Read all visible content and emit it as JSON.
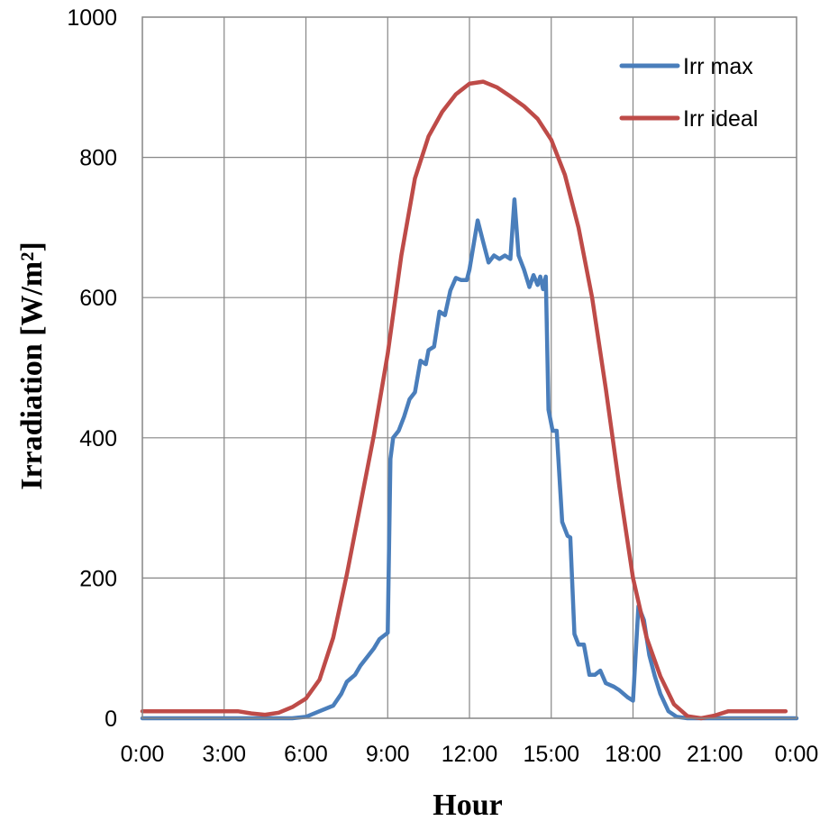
{
  "chart_data": {
    "type": "line",
    "title": "",
    "xlabel": "Hour",
    "ylabel": "Irradiation [W/m²]",
    "xlim": [
      0,
      24
    ],
    "ylim": [
      0,
      1000
    ],
    "grid": true,
    "legend_position": "top-right",
    "x_tick_labels": [
      "0:00",
      "3:00",
      "6:00",
      "9:00",
      "12:00",
      "15:00",
      "18:00",
      "21:00",
      "0:00"
    ],
    "y_tick_labels": [
      "0",
      "200",
      "400",
      "600",
      "800",
      "1000"
    ],
    "series": [
      {
        "name": "Irr max",
        "color": "#4a7ebb",
        "points": [
          [
            0.0,
            0
          ],
          [
            5.5,
            0
          ],
          [
            6.0,
            2
          ],
          [
            6.5,
            10
          ],
          [
            7.0,
            18
          ],
          [
            7.3,
            35
          ],
          [
            7.5,
            52
          ],
          [
            7.8,
            62
          ],
          [
            8.0,
            75
          ],
          [
            8.3,
            90
          ],
          [
            8.5,
            100
          ],
          [
            8.7,
            113
          ],
          [
            9.0,
            122
          ],
          [
            9.1,
            370
          ],
          [
            9.2,
            400
          ],
          [
            9.4,
            410
          ],
          [
            9.6,
            430
          ],
          [
            9.8,
            455
          ],
          [
            10.0,
            465
          ],
          [
            10.2,
            510
          ],
          [
            10.4,
            505
          ],
          [
            10.5,
            525
          ],
          [
            10.7,
            530
          ],
          [
            10.9,
            580
          ],
          [
            11.1,
            575
          ],
          [
            11.3,
            610
          ],
          [
            11.5,
            628
          ],
          [
            11.7,
            625
          ],
          [
            11.9,
            625
          ],
          [
            12.0,
            640
          ],
          [
            12.3,
            710
          ],
          [
            12.5,
            680
          ],
          [
            12.7,
            650
          ],
          [
            12.9,
            660
          ],
          [
            13.1,
            655
          ],
          [
            13.3,
            660
          ],
          [
            13.5,
            655
          ],
          [
            13.65,
            740
          ],
          [
            13.8,
            660
          ],
          [
            14.0,
            640
          ],
          [
            14.2,
            615
          ],
          [
            14.35,
            632
          ],
          [
            14.5,
            618
          ],
          [
            14.6,
            630
          ],
          [
            14.7,
            612
          ],
          [
            14.8,
            630
          ],
          [
            14.9,
            440
          ],
          [
            15.05,
            410
          ],
          [
            15.2,
            410
          ],
          [
            15.4,
            280
          ],
          [
            15.6,
            260
          ],
          [
            15.7,
            258
          ],
          [
            15.85,
            120
          ],
          [
            16.0,
            105
          ],
          [
            16.2,
            105
          ],
          [
            16.4,
            62
          ],
          [
            16.6,
            62
          ],
          [
            16.8,
            68
          ],
          [
            17.0,
            50
          ],
          [
            17.3,
            45
          ],
          [
            17.5,
            40
          ],
          [
            17.8,
            30
          ],
          [
            18.0,
            25
          ],
          [
            18.2,
            160
          ],
          [
            18.4,
            140
          ],
          [
            18.6,
            90
          ],
          [
            18.8,
            60
          ],
          [
            19.0,
            35
          ],
          [
            19.3,
            10
          ],
          [
            19.6,
            2
          ],
          [
            20.0,
            0
          ],
          [
            24.0,
            0
          ]
        ]
      },
      {
        "name": "Irr ideal",
        "color": "#be4b48",
        "points": [
          [
            0.0,
            10
          ],
          [
            1.0,
            10
          ],
          [
            2.0,
            10
          ],
          [
            3.0,
            10
          ],
          [
            3.5,
            10
          ],
          [
            4.0,
            7
          ],
          [
            4.5,
            5
          ],
          [
            5.0,
            8
          ],
          [
            5.5,
            16
          ],
          [
            6.0,
            28
          ],
          [
            6.5,
            55
          ],
          [
            7.0,
            115
          ],
          [
            7.5,
            205
          ],
          [
            8.0,
            305
          ],
          [
            8.5,
            405
          ],
          [
            9.0,
            520
          ],
          [
            9.5,
            660
          ],
          [
            10.0,
            770
          ],
          [
            10.5,
            830
          ],
          [
            11.0,
            865
          ],
          [
            11.5,
            890
          ],
          [
            12.0,
            905
          ],
          [
            12.5,
            908
          ],
          [
            13.0,
            900
          ],
          [
            13.5,
            887
          ],
          [
            14.0,
            873
          ],
          [
            14.5,
            855
          ],
          [
            15.0,
            825
          ],
          [
            15.5,
            775
          ],
          [
            16.0,
            700
          ],
          [
            16.5,
            600
          ],
          [
            17.0,
            470
          ],
          [
            17.5,
            330
          ],
          [
            18.0,
            200
          ],
          [
            18.5,
            115
          ],
          [
            19.0,
            60
          ],
          [
            19.5,
            20
          ],
          [
            20.0,
            3
          ],
          [
            20.5,
            0
          ],
          [
            21.0,
            4
          ],
          [
            21.5,
            10
          ],
          [
            22.0,
            10
          ],
          [
            23.0,
            10
          ],
          [
            23.6,
            10
          ]
        ]
      }
    ]
  }
}
